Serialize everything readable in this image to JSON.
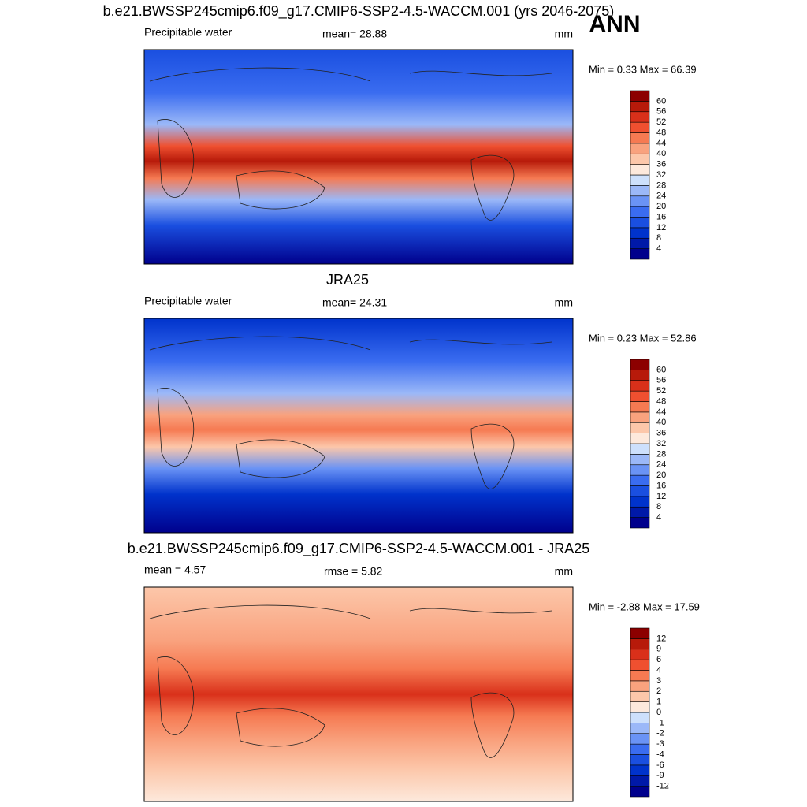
{
  "title": "ANN",
  "panels": [
    {
      "title": "b.e21.BWSSP245cmip6.f09_g17.CMIP6-SSP2-4.5-WACCM.001 (yrs 2046-2075)",
      "left": "Precipitable water",
      "center": "mean=  28.88",
      "units": "mm",
      "stats": "Min =   0.33 Max =  66.39",
      "colorbar": {
        "labels": [
          4,
          8,
          12,
          16,
          20,
          24,
          28,
          32,
          36,
          40,
          44,
          48,
          52,
          56,
          60
        ],
        "colors": [
          "#00008c",
          "#0019a8",
          "#0033cc",
          "#1a4fe0",
          "#3a6cf0",
          "#6a93f5",
          "#9bb8f8",
          "#cde0fc",
          "#fde9dc",
          "#fcc7aa",
          "#f9a27e",
          "#f67a52",
          "#ef5030",
          "#d9301a",
          "#b71a0a",
          "#8c0000"
        ]
      }
    },
    {
      "title": "JRA25",
      "left": "Precipitable water",
      "center": "mean=  24.31",
      "units": "mm",
      "stats": "Min =   0.23 Max =  52.86",
      "colorbar": {
        "labels": [
          4,
          8,
          12,
          16,
          20,
          24,
          28,
          32,
          36,
          40,
          44,
          48,
          52,
          56,
          60
        ],
        "colors": [
          "#00008c",
          "#0019a8",
          "#0033cc",
          "#1a4fe0",
          "#3a6cf0",
          "#6a93f5",
          "#9bb8f8",
          "#cde0fc",
          "#fde9dc",
          "#fcc7aa",
          "#f9a27e",
          "#f67a52",
          "#ef5030",
          "#d9301a",
          "#b71a0a",
          "#8c0000"
        ]
      }
    },
    {
      "title": "b.e21.BWSSP245cmip6.f09_g17.CMIP6-SSP2-4.5-WACCM.001 - JRA25",
      "left": "mean =   4.57",
      "center": "rmse =   5.82",
      "units": "mm",
      "stats": "Min =  -2.88 Max =  17.59",
      "colorbar": {
        "labels": [
          -12,
          -9,
          -6,
          -4,
          -3,
          -2,
          -1,
          0,
          1,
          2,
          3,
          4,
          6,
          9,
          12
        ],
        "colors": [
          "#00008c",
          "#0019a8",
          "#0033cc",
          "#1a4fe0",
          "#3a6cf0",
          "#6a93f5",
          "#9bb8f8",
          "#cde0fc",
          "#fde9dc",
          "#fcc7aa",
          "#f9a27e",
          "#f67a52",
          "#ef5030",
          "#d9301a",
          "#b71a0a",
          "#8c0000"
        ]
      }
    }
  ]
}
